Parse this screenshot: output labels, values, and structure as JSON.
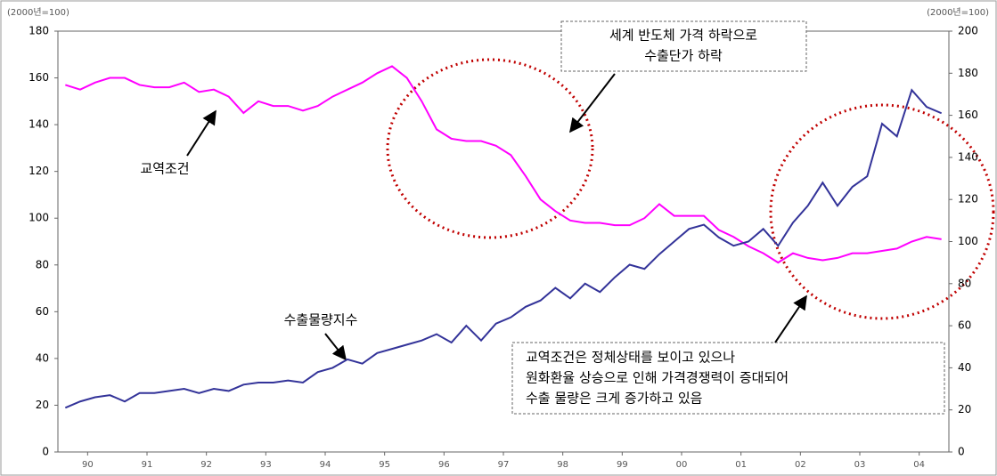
{
  "chart_data": {
    "type": "line",
    "y_unit_label": "(2000년=100)",
    "y2_unit_label": "(2000년=100)",
    "x": [
      1990.125,
      1990.375,
      1990.625,
      1990.875,
      1991.125,
      1991.375,
      1991.625,
      1991.875,
      1992.125,
      1992.375,
      1992.625,
      1992.875,
      1993.125,
      1993.375,
      1993.625,
      1993.875,
      1994.125,
      1994.375,
      1994.625,
      1994.875,
      1995.125,
      1995.375,
      1995.625,
      1995.875,
      1996.125,
      1996.375,
      1996.625,
      1996.875,
      1997.125,
      1997.375,
      1997.625,
      1997.875,
      1998.125,
      1998.375,
      1998.625,
      1998.875,
      1999.125,
      1999.375,
      1999.625,
      1999.875,
      2000.125,
      2000.375,
      2000.625,
      2000.875,
      2001.125,
      2001.375,
      2001.625,
      2001.875,
      2002.125,
      2002.375,
      2002.625,
      2002.875,
      2003.125,
      2003.375,
      2003.625,
      2003.875,
      2004.125,
      2004.375,
      2004.625,
      2004.875
    ],
    "xlim": [
      1990,
      2005
    ],
    "xticks": [
      {
        "value": 1990.5,
        "label": "90"
      },
      {
        "value": 1991.5,
        "label": "91"
      },
      {
        "value": 1992.5,
        "label": "92"
      },
      {
        "value": 1993.5,
        "label": "93"
      },
      {
        "value": 1994.5,
        "label": "94"
      },
      {
        "value": 1995.5,
        "label": "95"
      },
      {
        "value": 1996.5,
        "label": "96"
      },
      {
        "value": 1997.5,
        "label": "97"
      },
      {
        "value": 1998.5,
        "label": "98"
      },
      {
        "value": 1999.5,
        "label": "99"
      },
      {
        "value": 2000.5,
        "label": "00"
      },
      {
        "value": 2001.5,
        "label": "01"
      },
      {
        "value": 2002.5,
        "label": "02"
      },
      {
        "value": 2003.5,
        "label": "03"
      },
      {
        "value": 2004.5,
        "label": "04"
      }
    ],
    "ylim": [
      0,
      180
    ],
    "yticks": [
      0,
      20,
      40,
      60,
      80,
      100,
      120,
      140,
      160,
      180
    ],
    "y2lim": [
      0,
      200
    ],
    "y2ticks": [
      0,
      20,
      40,
      60,
      80,
      100,
      120,
      140,
      160,
      180,
      200
    ],
    "series": [
      {
        "name": "교역조건",
        "color": "#ff00ff",
        "values": [
          157,
          155,
          158,
          160,
          160,
          157,
          156,
          156,
          158,
          154,
          155,
          152,
          145,
          150,
          148,
          148,
          146,
          148,
          152,
          155,
          158,
          162,
          165,
          160,
          150,
          138,
          134,
          133,
          133,
          131,
          127,
          118,
          108,
          103,
          99,
          98,
          98,
          97,
          97,
          100,
          106,
          101,
          101,
          101,
          95,
          92,
          88,
          85,
          81,
          85,
          83,
          82,
          83,
          85,
          85,
          86,
          87,
          90,
          92,
          91
        ]
      },
      {
        "name": "수출물량지수",
        "color": "#333399",
        "axis": "y2",
        "values": [
          21,
          24,
          26,
          27,
          24,
          28,
          28,
          29,
          30,
          28,
          30,
          29,
          32,
          33,
          33,
          34,
          33,
          38,
          40,
          44,
          42,
          47,
          49,
          51,
          53,
          56,
          52,
          60,
          53,
          61,
          64,
          69,
          72,
          78,
          73,
          80,
          76,
          83,
          89,
          87,
          94,
          100,
          106,
          108,
          102,
          98,
          100,
          106,
          98,
          109,
          117,
          128,
          117,
          126,
          131,
          156,
          150,
          172,
          164,
          161
        ]
      }
    ],
    "annotations": [
      {
        "lines": [
          "세계 반도체 가격 하락으로",
          "수출단가 하락"
        ]
      },
      {
        "lines": [
          "교역조건은 정체상태를 보이고 있으나",
          "원화환율 상승으로 인해 가격경쟁력이 증대되어",
          "수출 물량은 크게 증가하고 있음"
        ]
      }
    ]
  }
}
